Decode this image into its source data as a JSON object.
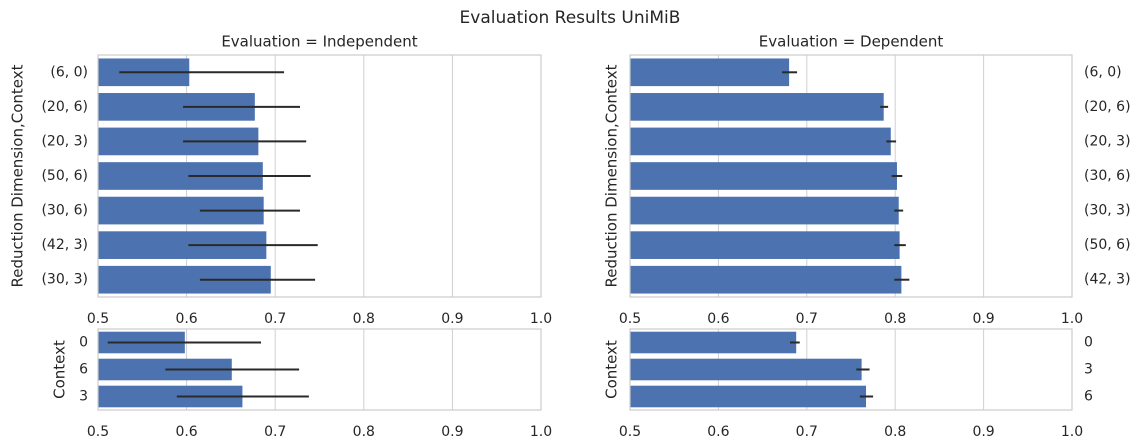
{
  "title": "Evaluation Results UniMiB",
  "chart_data": [
    {
      "type": "hbar",
      "title": "Evaluation = Independent",
      "y_label": "Reduction Dimension,Context",
      "y_tick_side": "left",
      "categories": [
        "(6, 0)",
        "(20, 6)",
        "(20, 3)",
        "(50, 6)",
        "(30, 6)",
        "(42, 3)",
        "(30, 3)"
      ],
      "values": [
        0.603,
        0.677,
        0.681,
        0.686,
        0.687,
        0.69,
        0.695
      ],
      "ci_low": [
        0.524,
        0.596,
        0.596,
        0.602,
        0.615,
        0.602,
        0.615
      ],
      "ci_high": [
        0.71,
        0.728,
        0.735,
        0.74,
        0.728,
        0.748,
        0.745
      ],
      "color": "#4c72b0",
      "xlim": [
        0.5,
        1
      ],
      "xticks": [
        0.5,
        0.6,
        0.7,
        0.8,
        0.9,
        {
          "value": 1,
          "label": "1.0"
        }
      ],
      "grid": true
    },
    {
      "type": "hbar",
      "title": "Evaluation = Dependent",
      "y_label": "Reduction Dimension,Context",
      "y_tick_side": "right",
      "categories": [
        "(6, 0)",
        "(20, 6)",
        "(20, 3)",
        "(30, 6)",
        "(30, 3)",
        "(50, 6)",
        "(42, 3)"
      ],
      "values": [
        0.68,
        0.787,
        0.795,
        0.802,
        0.804,
        0.805,
        0.807
      ],
      "ci_low": [
        0.672,
        0.783,
        0.79,
        0.796,
        0.799,
        0.799,
        0.799
      ],
      "ci_high": [
        0.689,
        0.792,
        0.801,
        0.808,
        0.809,
        0.812,
        0.816
      ],
      "color": "#4c72b0",
      "xlim": [
        0.5,
        1
      ],
      "xticks": [
        0.5,
        0.6,
        0.7,
        0.8,
        0.9,
        {
          "value": 1,
          "label": "1.0"
        }
      ],
      "grid": true
    },
    {
      "type": "hbar",
      "y_label": "Context",
      "y_tick_side": "left",
      "categories": [
        "0",
        "6",
        "3"
      ],
      "values": [
        0.598,
        0.651,
        0.663
      ],
      "ci_low": [
        0.511,
        0.576,
        0.589
      ],
      "ci_high": [
        0.684,
        0.727,
        0.738
      ],
      "color": "#4c72b0",
      "xlim": [
        0.5,
        1
      ],
      "xticks": [
        0.5,
        0.6,
        0.7,
        0.8,
        0.9,
        {
          "value": 1,
          "label": "1.0"
        }
      ],
      "grid": true
    },
    {
      "type": "hbar",
      "y_label": "Context",
      "y_tick_side": "right",
      "categories": [
        "0",
        "3",
        "6"
      ],
      "values": [
        0.688,
        0.762,
        0.767
      ],
      "ci_low": [
        0.681,
        0.756,
        0.76
      ],
      "ci_high": [
        0.692,
        0.771,
        0.775
      ],
      "color": "#4c72b0",
      "xlim": [
        0.5,
        1
      ],
      "xticks": [
        0.5,
        0.6,
        0.7,
        0.8,
        0.9,
        {
          "value": 1,
          "label": "1.0"
        }
      ],
      "grid": true
    }
  ]
}
